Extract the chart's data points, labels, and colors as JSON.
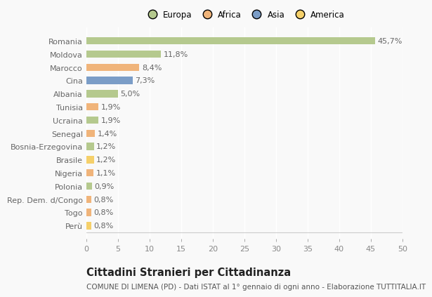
{
  "countries": [
    "Romania",
    "Moldova",
    "Marocco",
    "Cina",
    "Albania",
    "Tunisia",
    "Ucraina",
    "Senegal",
    "Bosnia-Erzegovina",
    "Brasile",
    "Nigeria",
    "Polonia",
    "Rep. Dem. d/Congo",
    "Togo",
    "Perù"
  ],
  "values": [
    45.7,
    11.8,
    8.4,
    7.3,
    5.0,
    1.9,
    1.9,
    1.4,
    1.2,
    1.2,
    1.1,
    0.9,
    0.8,
    0.8,
    0.8
  ],
  "labels": [
    "45,7%",
    "11,8%",
    "8,4%",
    "7,3%",
    "5,0%",
    "1,9%",
    "1,9%",
    "1,4%",
    "1,2%",
    "1,2%",
    "1,1%",
    "0,9%",
    "0,8%",
    "0,8%",
    "0,8%"
  ],
  "colors": [
    "#b5c98e",
    "#b5c98e",
    "#f0b47a",
    "#7b9dc7",
    "#b5c98e",
    "#f0b47a",
    "#b5c98e",
    "#f0b47a",
    "#b5c98e",
    "#f5d06a",
    "#f0b47a",
    "#b5c98e",
    "#f0b47a",
    "#f0b47a",
    "#f5d06a"
  ],
  "legend_labels": [
    "Europa",
    "Africa",
    "Asia",
    "America"
  ],
  "legend_colors": [
    "#b5c98e",
    "#f0b47a",
    "#7b9dc7",
    "#f5d06a"
  ],
  "xlim": [
    0,
    50
  ],
  "xticks": [
    0,
    5,
    10,
    15,
    20,
    25,
    30,
    35,
    40,
    45,
    50
  ],
  "title": "Cittadini Stranieri per Cittadinanza",
  "subtitle": "COMUNE DI LIMENA (PD) - Dati ISTAT al 1° gennaio di ogni anno - Elaborazione TUTTITALIA.IT",
  "bg_color": "#f9f9f9",
  "bar_height": 0.55,
  "label_fontsize": 8,
  "tick_fontsize": 8,
  "title_fontsize": 10.5,
  "subtitle_fontsize": 7.5
}
